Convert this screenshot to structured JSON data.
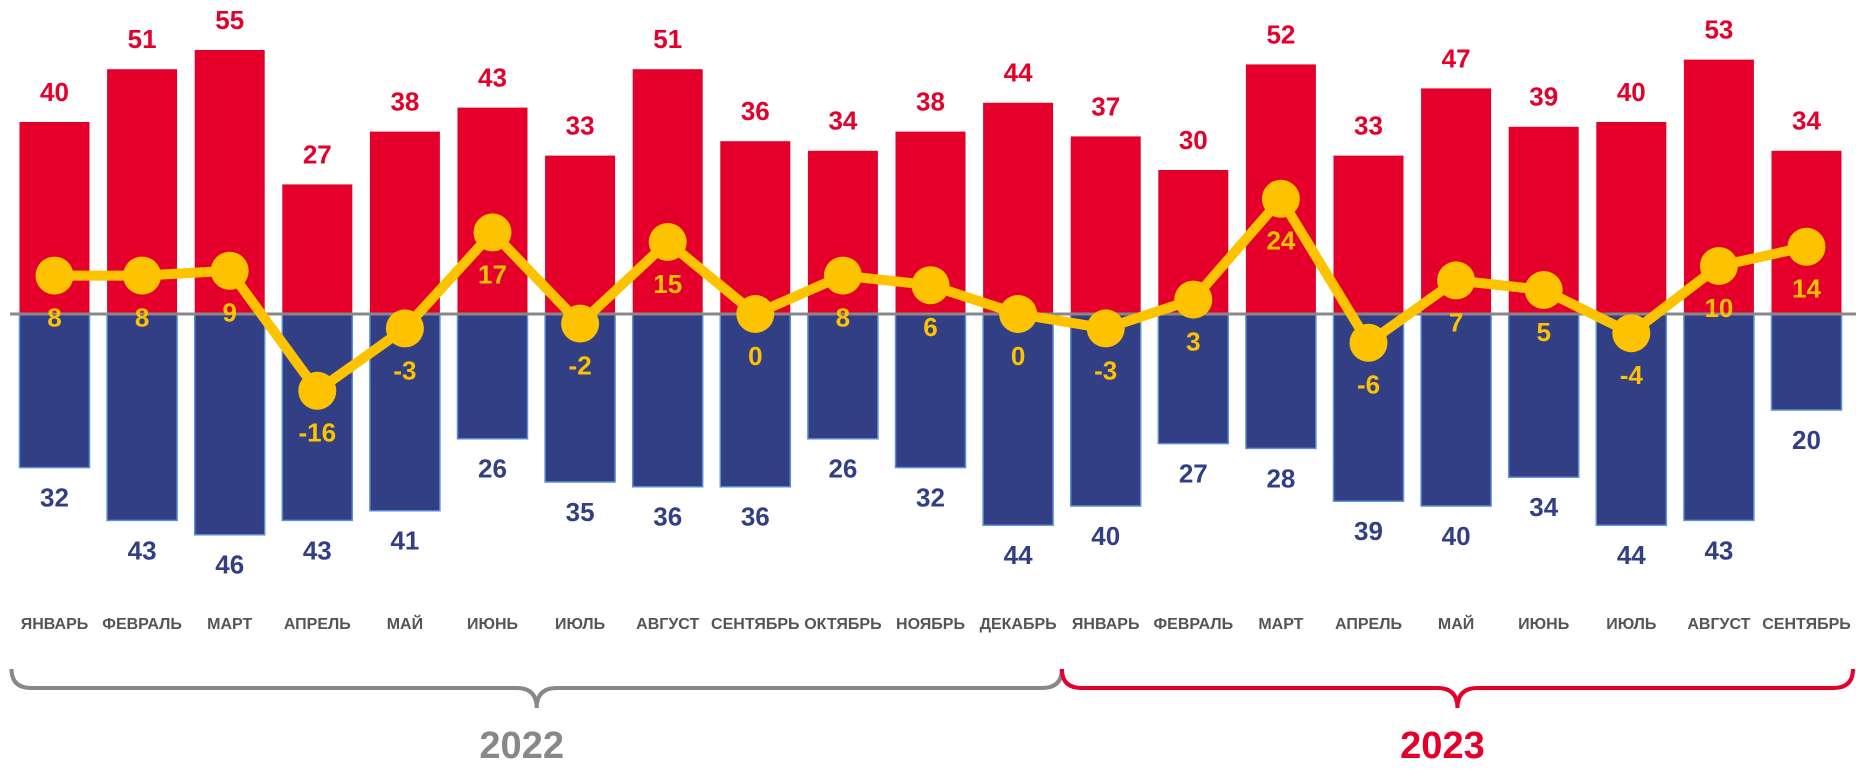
{
  "chart_data": {
    "type": "bar_line",
    "categories": [
      "ЯНВАРЬ",
      "ФЕВРАЛЬ",
      "МАРТ",
      "АПРЕЛЬ",
      "МАЙ",
      "ИЮНЬ",
      "ИЮЛЬ",
      "АВГУСТ",
      "СЕНТЯБРЬ",
      "ОКТЯБРЬ",
      "НОЯБРЬ",
      "ДЕКАБРЬ",
      "ЯНВАРЬ",
      "ФЕВРАЛЬ",
      "МАРТ",
      "АПРЕЛЬ",
      "МАЙ",
      "ИЮНЬ",
      "ИЮЛЬ",
      "АВГУСТ",
      "СЕНТЯБРЬ"
    ],
    "series": [
      {
        "color": "#e4002b",
        "values": [
          40,
          51,
          55,
          27,
          38,
          43,
          33,
          51,
          36,
          34,
          38,
          44,
          37,
          30,
          52,
          33,
          47,
          39,
          40,
          53,
          34
        ]
      },
      {
        "color": "#323f85",
        "values": [
          32,
          43,
          46,
          43,
          41,
          26,
          35,
          36,
          36,
          26,
          32,
          44,
          40,
          27,
          28,
          39,
          40,
          34,
          44,
          43,
          20
        ]
      },
      {
        "color": "#fdc300",
        "values": [
          8,
          8,
          9,
          -16,
          -3,
          17,
          -2,
          15,
          0,
          8,
          6,
          0,
          -3,
          3,
          24,
          -6,
          7,
          5,
          -4,
          10,
          14
        ]
      }
    ],
    "years": [
      {
        "label": "2022",
        "color": "#888888"
      },
      {
        "label": "2023",
        "color": "#e4002b"
      }
    ]
  }
}
